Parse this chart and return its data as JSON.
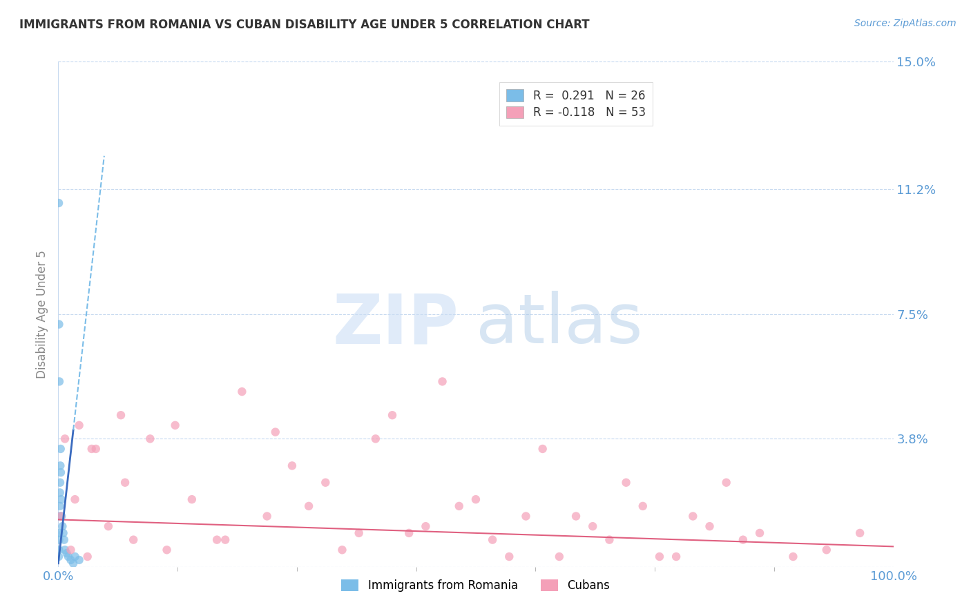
{
  "title": "IMMIGRANTS FROM ROMANIA VS CUBAN DISABILITY AGE UNDER 5 CORRELATION CHART",
  "source_text": "Source: ZipAtlas.com",
  "ylabel": "Disability Age Under 5",
  "x_min": 0.0,
  "x_max": 100.0,
  "y_min": 0.0,
  "y_max": 15.0,
  "y_ticks": [
    0.0,
    3.8,
    7.5,
    11.2,
    15.0
  ],
  "y_tick_labels": [
    "",
    "3.8%",
    "7.5%",
    "11.2%",
    "15.0%"
  ],
  "watermark_zip": "ZIP",
  "watermark_atlas": "atlas",
  "legend_romania_r": "R =  0.291",
  "legend_romania_n": "N = 26",
  "legend_cubans_r": "R = -0.118",
  "legend_cubans_n": "N = 53",
  "romania_color": "#7bbde8",
  "cubans_color": "#f4a0b8",
  "romania_trend_solid_color": "#3a6bbf",
  "cubans_trend_color": "#e06080",
  "romania_scatter_x": [
    0.05,
    0.08,
    0.1,
    0.12,
    0.15,
    0.18,
    0.2,
    0.22,
    0.25,
    0.28,
    0.3,
    0.35,
    0.4,
    0.5,
    0.6,
    0.7,
    0.8,
    1.0,
    1.2,
    1.5,
    1.8,
    2.0,
    2.5,
    0.06,
    0.09,
    0.13
  ],
  "romania_scatter_y": [
    0.3,
    0.5,
    0.8,
    1.0,
    1.5,
    1.8,
    2.2,
    2.5,
    3.0,
    3.5,
    2.8,
    2.0,
    1.5,
    1.2,
    1.0,
    0.8,
    0.5,
    0.4,
    0.3,
    0.2,
    0.1,
    0.3,
    0.2,
    10.8,
    7.2,
    5.5
  ],
  "cubans_scatter_x": [
    0.3,
    0.8,
    1.5,
    2.5,
    3.5,
    4.5,
    6.0,
    7.5,
    9.0,
    11.0,
    13.0,
    16.0,
    19.0,
    22.0,
    25.0,
    28.0,
    32.0,
    36.0,
    40.0,
    44.0,
    48.0,
    52.0,
    56.0,
    60.0,
    64.0,
    68.0,
    72.0,
    76.0,
    80.0,
    84.0,
    88.0,
    92.0,
    96.0,
    2.0,
    4.0,
    8.0,
    14.0,
    20.0,
    26.0,
    30.0,
    34.0,
    38.0,
    42.0,
    46.0,
    50.0,
    54.0,
    58.0,
    62.0,
    66.0,
    70.0,
    74.0,
    78.0,
    82.0
  ],
  "cubans_scatter_y": [
    1.5,
    3.8,
    0.5,
    4.2,
    0.3,
    3.5,
    1.2,
    4.5,
    0.8,
    3.8,
    0.5,
    2.0,
    0.8,
    5.2,
    1.5,
    3.0,
    2.5,
    1.0,
    4.5,
    1.2,
    1.8,
    0.8,
    1.5,
    0.3,
    1.2,
    2.5,
    0.3,
    1.5,
    2.5,
    1.0,
    0.3,
    0.5,
    1.0,
    2.0,
    3.5,
    2.5,
    4.2,
    0.8,
    4.0,
    1.8,
    0.5,
    3.8,
    1.0,
    5.5,
    2.0,
    0.3,
    3.5,
    1.5,
    0.8,
    1.8,
    0.3,
    1.2,
    0.8
  ],
  "romania_trend_solid_x0": 0.0,
  "romania_trend_solid_x1": 1.8,
  "romania_trend_slope": 2.2,
  "romania_trend_intercept": 0.1,
  "romania_trend_dash_x0": 1.8,
  "romania_trend_dash_x1": 5.5,
  "cubans_trend_x0": 0.0,
  "cubans_trend_x1": 100.0,
  "cubans_trend_slope": -0.008,
  "cubans_trend_intercept": 1.4,
  "background_color": "#ffffff",
  "grid_color": "#c8daf0",
  "title_color": "#333333",
  "tick_label_color": "#5b9bd5"
}
